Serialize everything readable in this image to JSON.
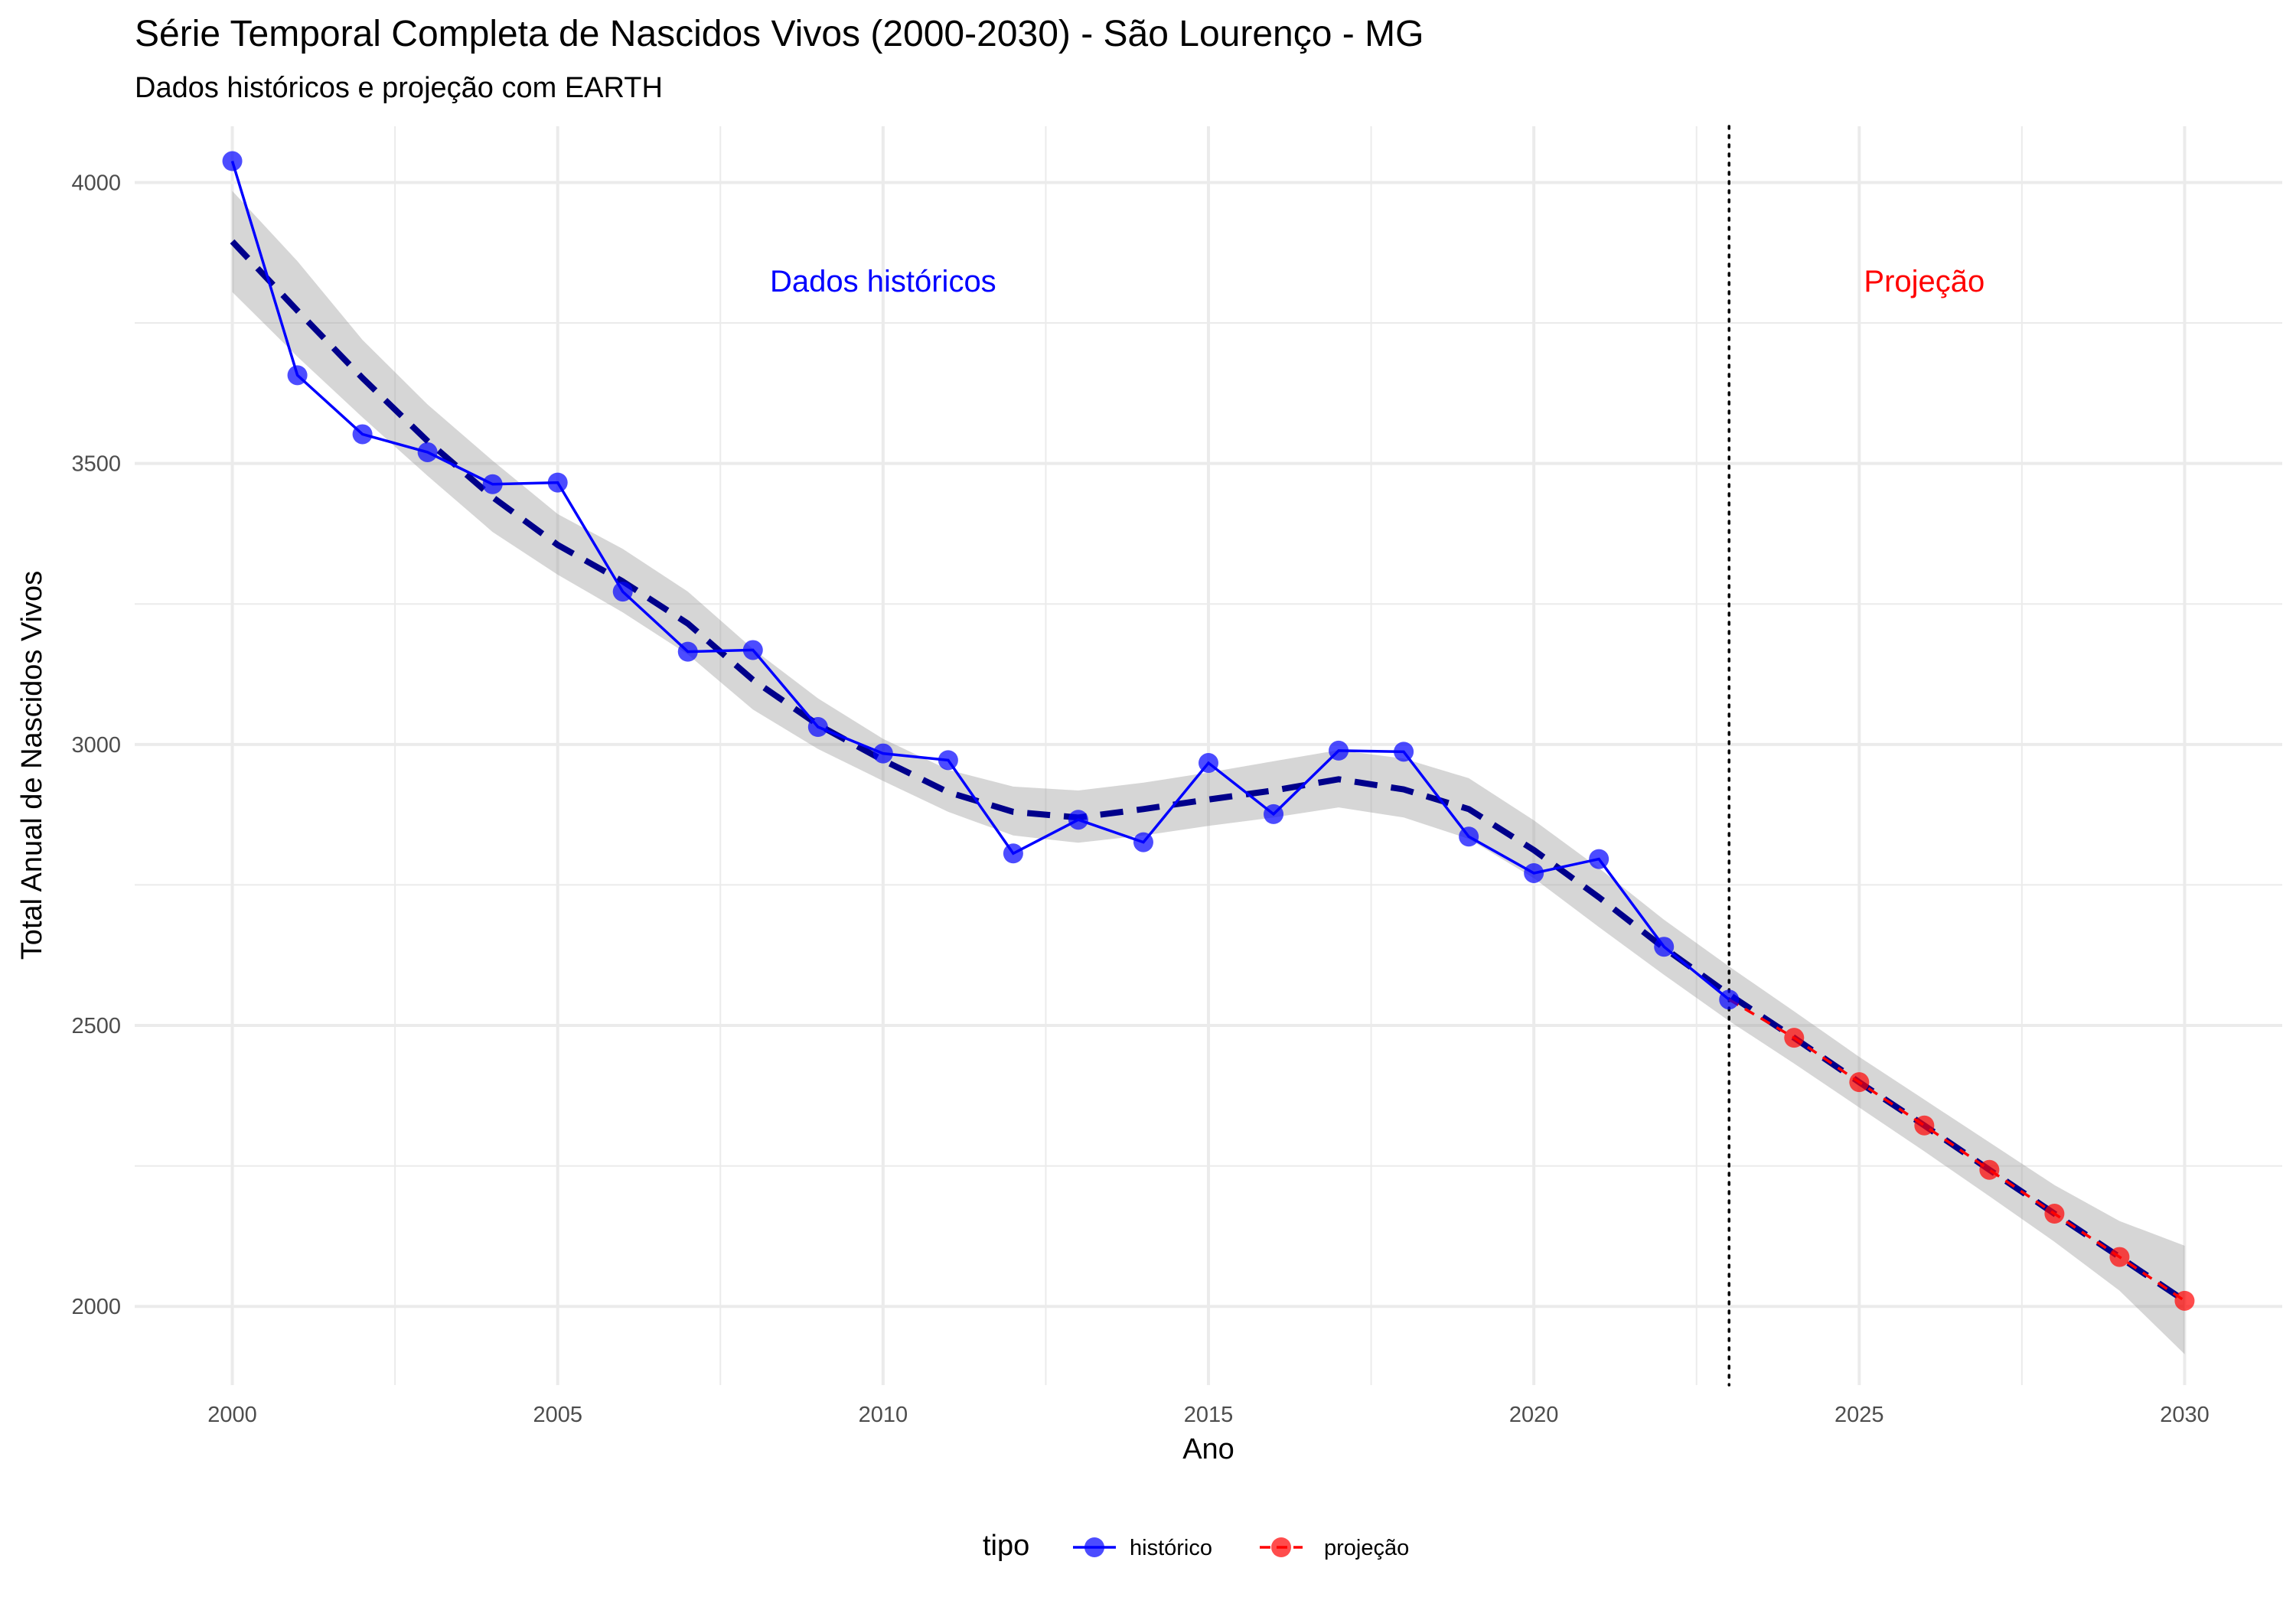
{
  "chart_data": {
    "type": "line",
    "title": "Série Temporal Completa de Nascidos Vivos (2000-2030) -  São Lourenço - MG",
    "subtitle": "Dados históricos e projeção com EARTH",
    "xlabel": "Ano",
    "ylabel": "Total Anual de Nascidos Vivos",
    "xlim": [
      1998.5,
      2031.5
    ],
    "ylim": [
      1860,
      4100
    ],
    "x_ticks": [
      2000,
      2005,
      2010,
      2015,
      2020,
      2025,
      2030
    ],
    "y_ticks": [
      2000,
      2500,
      3000,
      3500,
      4000
    ],
    "grid": true,
    "vline": {
      "x": 2023,
      "style": "dotted"
    },
    "annotations": [
      {
        "text": "Dados históricos",
        "x": 2010,
        "y": 3825,
        "color": "#0000ff"
      },
      {
        "text": "Projeção",
        "x": 2026,
        "y": 3825,
        "color": "#ff0000"
      }
    ],
    "series": [
      {
        "name": "histórico",
        "color": "#0000ff",
        "x": [
          2000,
          2001,
          2002,
          2003,
          2004,
          2005,
          2006,
          2007,
          2008,
          2009,
          2010,
          2011,
          2012,
          2013,
          2014,
          2015,
          2016,
          2017,
          2018,
          2019,
          2020,
          2021,
          2022,
          2023
        ],
        "values": [
          4038,
          3657,
          3552,
          3520,
          3463,
          3466,
          3272,
          3165,
          3168,
          3031,
          2984,
          2972,
          2806,
          2866,
          2826,
          2967,
          2876,
          2989,
          2987,
          2836,
          2771,
          2796,
          2640,
          2546
        ]
      },
      {
        "name": "projeção",
        "color": "#ff0000",
        "x": [
          2023,
          2024,
          2025,
          2026,
          2027,
          2028,
          2029,
          2030
        ],
        "values": [
          2546,
          2478,
          2399,
          2322,
          2243,
          2165,
          2088,
          2010
        ]
      }
    ],
    "smooth": {
      "color": "#00008b",
      "style": "dashed",
      "x": [
        2000,
        2001,
        2002,
        2003,
        2004,
        2005,
        2006,
        2007,
        2008,
        2009,
        2010,
        2011,
        2012,
        2013,
        2014,
        2015,
        2016,
        2017,
        2018,
        2019,
        2020,
        2021,
        2022,
        2023,
        2024,
        2025,
        2026,
        2027,
        2028,
        2029,
        2030
      ],
      "values": [
        3895,
        3772,
        3652,
        3540,
        3440,
        3355,
        3290,
        3215,
        3115,
        3035,
        2972,
        2915,
        2880,
        2870,
        2885,
        2902,
        2918,
        2938,
        2920,
        2885,
        2812,
        2728,
        2638,
        2555,
        2478,
        2399,
        2322,
        2243,
        2165,
        2088,
        2010
      ],
      "ci_lower": [
        3805,
        3690,
        3582,
        3478,
        3378,
        3302,
        3235,
        3160,
        3062,
        2992,
        2935,
        2880,
        2838,
        2825,
        2838,
        2855,
        2870,
        2888,
        2870,
        2832,
        2762,
        2675,
        2590,
        2508,
        2432,
        2354,
        2276,
        2196,
        2115,
        2028,
        1915
      ],
      "ci_upper": [
        3985,
        3860,
        3720,
        3605,
        3505,
        3410,
        3348,
        3272,
        3170,
        3082,
        3010,
        2955,
        2925,
        2918,
        2932,
        2950,
        2970,
        2990,
        2975,
        2940,
        2865,
        2780,
        2688,
        2605,
        2525,
        2444,
        2368,
        2292,
        2216,
        2152,
        2108
      ]
    },
    "legend": {
      "title": "tipo",
      "placement": "bottom",
      "entries": [
        "histórico",
        "projeção"
      ]
    }
  }
}
